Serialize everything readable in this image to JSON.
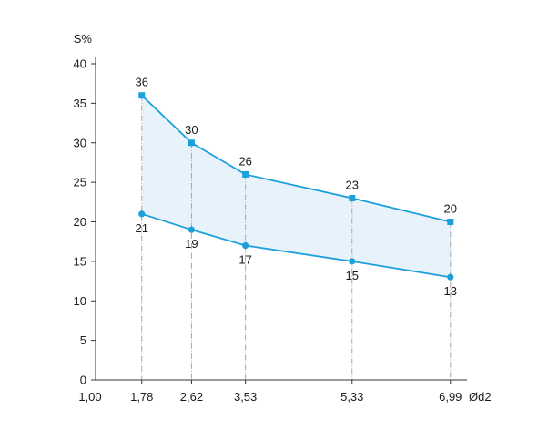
{
  "chart_data": {
    "type": "line",
    "ylabel": "S%",
    "xlabel": "Ød2",
    "ylim": [
      0,
      40
    ],
    "yticks": [
      0,
      5,
      10,
      15,
      20,
      25,
      30,
      35,
      40
    ],
    "xlim": [
      1.0,
      7.27
    ],
    "x_origin_label": "1,00",
    "x": [
      1.78,
      2.62,
      3.53,
      5.33,
      6.99
    ],
    "x_labels": [
      "1,78",
      "2,62",
      "3,53",
      "5,33",
      "6,99"
    ],
    "grid": false,
    "series": [
      {
        "marker": "square",
        "values": [
          36,
          30,
          26,
          23,
          20
        ]
      },
      {
        "marker": "circle",
        "values": [
          21,
          19,
          17,
          15,
          13
        ]
      }
    ],
    "fill_between": true,
    "colors": {
      "line": "#1ba0dc",
      "fill": "#e8f2fa",
      "axis": "#333333",
      "guide": "#a6a6a6"
    }
  }
}
